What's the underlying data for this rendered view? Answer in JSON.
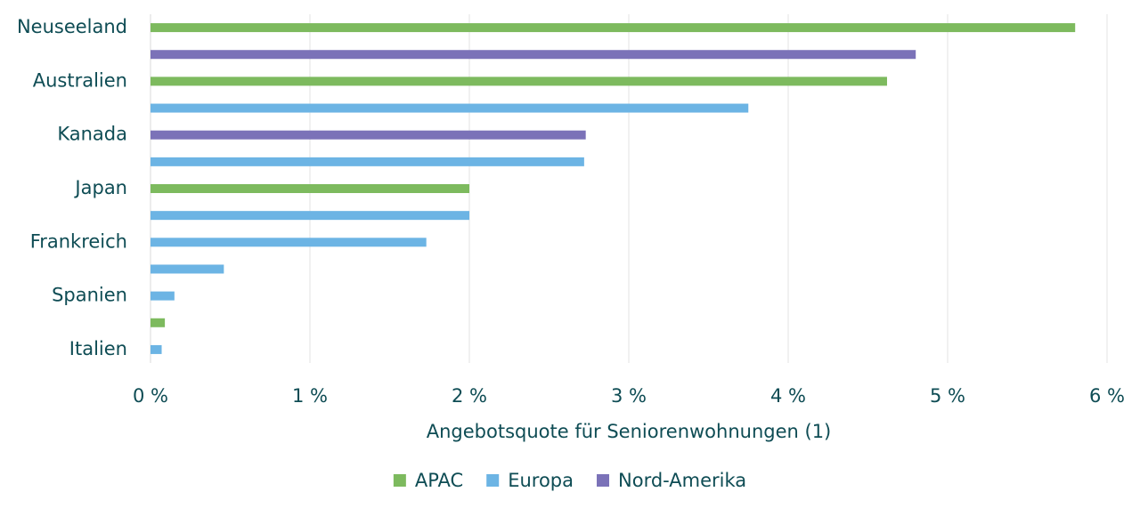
{
  "chart_data": {
    "type": "hbar",
    "x_label": "Angebotsquote für Seniorenwohnungen (1)",
    "categories": [
      "Neuseeland",
      null,
      "Australien",
      null,
      "Kanada",
      null,
      "Japan",
      null,
      "Frankreich",
      null,
      "Spanien",
      null,
      "Italien"
    ],
    "series": [
      {
        "name": "APAC",
        "color": "#7dba5e",
        "values": [
          5.8,
          null,
          4.62,
          null,
          null,
          null,
          2.0,
          null,
          null,
          null,
          null,
          0.09,
          null
        ]
      },
      {
        "name": "Europa",
        "color": "#6cb4e4",
        "values": [
          null,
          null,
          null,
          3.75,
          null,
          2.72,
          null,
          2.0,
          1.73,
          0.46,
          0.15,
          null,
          0.07
        ]
      },
      {
        "name": "Nord-Amerika",
        "color": "#7b72b8",
        "values": [
          null,
          4.8,
          null,
          null,
          2.73,
          null,
          null,
          null,
          null,
          null,
          null,
          null,
          null
        ]
      }
    ],
    "xlim": [
      0,
      6
    ],
    "xticks": [
      {
        "value": 0,
        "label": "0 %"
      },
      {
        "value": 1,
        "label": "1 %"
      },
      {
        "value": 2,
        "label": "2 %"
      },
      {
        "value": 3,
        "label": "3 %"
      },
      {
        "value": 4,
        "label": "4 %"
      },
      {
        "value": 5,
        "label": "5 %"
      },
      {
        "value": 6,
        "label": "6 %"
      }
    ],
    "grid": true,
    "legend": "bottom"
  }
}
